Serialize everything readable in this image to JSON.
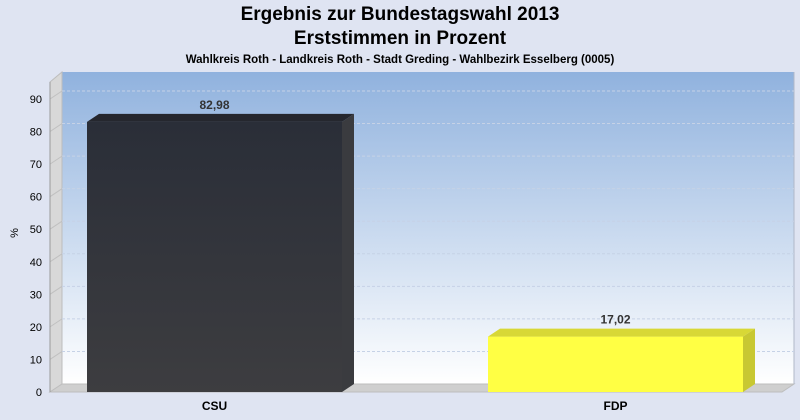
{
  "chart_data": {
    "type": "bar",
    "title": "Ergebnis zur Bundestagswahl 2013",
    "subtitle": "Erststimmen in Prozent",
    "subsubtitle": "Wahlkreis Roth - Landkreis Roth - Stadt Greding - Wahlbezirk Esselberg (0005)",
    "xlabel": "",
    "ylabel": "%",
    "categories": [
      "CSU",
      "FDP"
    ],
    "values": [
      82.98,
      17.02
    ],
    "value_labels": [
      "82,98",
      "17,02"
    ],
    "bar_colors": [
      "#2f3138",
      "#ffff44"
    ],
    "ylim": [
      0,
      95
    ],
    "yticks": [
      0,
      10,
      20,
      30,
      40,
      50,
      60,
      70,
      80,
      90
    ],
    "grid": true,
    "legend": "none"
  }
}
